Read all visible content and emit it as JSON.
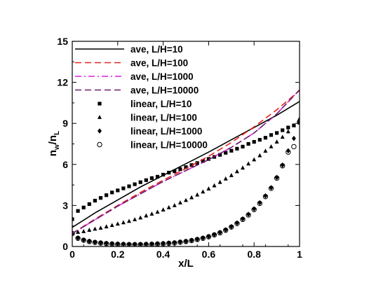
{
  "chart_data": {
    "type": "line",
    "xlabel": "x/L",
    "ylabel_main": "n",
    "ylabel_sub1": "w",
    "ylabel_mid": "/n",
    "ylabel_sub2": "L",
    "xlim": [
      0,
      1
    ],
    "ylim": [
      0,
      15
    ],
    "xticks": [
      0,
      0.2,
      0.4,
      0.6,
      0.8,
      1
    ],
    "xtick_labels": [
      "0",
      "0.2",
      "0.4",
      "0.6",
      "0.8",
      "1"
    ],
    "yticks": [
      0,
      3,
      6,
      9,
      12,
      15
    ],
    "ytick_labels": [
      "0",
      "3",
      "6",
      "9",
      "12",
      "15"
    ],
    "grid": false,
    "legend_position": "top-left",
    "lines": [
      {
        "name": "ave, L/H=10",
        "color": "#000000",
        "dash": "solid",
        "x": [
          0,
          0.1,
          0.2,
          0.3,
          0.4,
          0.5,
          0.6,
          0.7,
          0.8,
          0.9,
          1.0
        ],
        "y": [
          1.4,
          2.45,
          3.4,
          4.35,
          5.2,
          6.05,
          6.9,
          7.8,
          8.7,
          9.6,
          10.6
        ]
      },
      {
        "name": "ave, L/H=100",
        "color": "#e8221c",
        "dash": "longdash",
        "x": [
          0,
          0.1,
          0.2,
          0.3,
          0.4,
          0.5,
          0.6,
          0.7,
          0.8,
          0.9,
          1.0
        ],
        "y": [
          0.95,
          2.0,
          3.0,
          3.95,
          4.85,
          5.7,
          6.6,
          7.6,
          8.75,
          10.0,
          11.4
        ]
      },
      {
        "name": "ave, L/H=1000",
        "color": "#e020e0",
        "dash": "dashdot",
        "x": [
          0,
          0.1,
          0.2,
          0.3,
          0.4,
          0.5,
          0.6,
          0.7,
          0.8,
          0.9,
          1.0
        ],
        "y": [
          0.95,
          1.95,
          2.95,
          3.85,
          4.75,
          5.55,
          6.35,
          7.25,
          8.3,
          9.7,
          11.45
        ]
      },
      {
        "name": "ave, L/H=10000",
        "color": "#6a1f6e",
        "dash": "longdash",
        "x": [
          0,
          0.1,
          0.2,
          0.3,
          0.4,
          0.5,
          0.6,
          0.7,
          0.8,
          0.9,
          1.0
        ],
        "y": [
          0.95,
          1.95,
          2.95,
          3.85,
          4.75,
          5.55,
          6.35,
          7.25,
          8.3,
          9.7,
          11.45
        ]
      }
    ],
    "markers": [
      {
        "name": "linear, L/H=10",
        "marker": "square",
        "x": [
          0,
          0.025,
          0.05,
          0.075,
          0.1,
          0.125,
          0.15,
          0.175,
          0.2,
          0.225,
          0.25,
          0.275,
          0.3,
          0.325,
          0.35,
          0.375,
          0.4,
          0.425,
          0.45,
          0.475,
          0.5,
          0.525,
          0.55,
          0.575,
          0.6,
          0.625,
          0.65,
          0.675,
          0.7,
          0.725,
          0.75,
          0.775,
          0.8,
          0.825,
          0.85,
          0.875,
          0.9,
          0.925,
          0.95,
          0.975,
          1.0
        ],
        "y": [
          2.0,
          2.6,
          2.85,
          3.1,
          3.35,
          3.55,
          3.75,
          3.95,
          4.1,
          4.25,
          4.4,
          4.55,
          4.7,
          4.85,
          5.0,
          5.1,
          5.25,
          5.4,
          5.5,
          5.65,
          5.8,
          5.95,
          6.1,
          6.25,
          6.4,
          6.55,
          6.7,
          6.85,
          7.0,
          7.15,
          7.3,
          7.5,
          7.65,
          7.8,
          7.95,
          8.15,
          8.3,
          8.5,
          8.7,
          8.85,
          9.05
        ]
      },
      {
        "name": "linear, L/H=100",
        "marker": "triangle",
        "x": [
          0,
          0.025,
          0.05,
          0.075,
          0.1,
          0.125,
          0.15,
          0.175,
          0.2,
          0.225,
          0.25,
          0.275,
          0.3,
          0.325,
          0.35,
          0.375,
          0.4,
          0.425,
          0.45,
          0.475,
          0.5,
          0.525,
          0.55,
          0.575,
          0.6,
          0.625,
          0.65,
          0.675,
          0.7,
          0.725,
          0.75,
          0.775,
          0.8,
          0.825,
          0.85,
          0.875,
          0.9,
          0.925,
          0.95,
          0.975,
          1.0
        ],
        "y": [
          1.0,
          1.05,
          1.1,
          1.2,
          1.28,
          1.35,
          1.45,
          1.55,
          1.65,
          1.75,
          1.85,
          1.97,
          2.1,
          2.25,
          2.38,
          2.52,
          2.68,
          2.85,
          3.0,
          3.2,
          3.38,
          3.58,
          3.78,
          4.0,
          4.22,
          4.45,
          4.7,
          4.95,
          5.2,
          5.48,
          5.75,
          6.05,
          6.35,
          6.65,
          6.98,
          7.3,
          7.65,
          8.0,
          8.4,
          8.85,
          9.35
        ]
      },
      {
        "name": "linear, L/H=1000",
        "marker": "diamond",
        "x": [
          0,
          0.025,
          0.05,
          0.075,
          0.1,
          0.125,
          0.15,
          0.175,
          0.2,
          0.225,
          0.25,
          0.275,
          0.3,
          0.325,
          0.35,
          0.375,
          0.4,
          0.425,
          0.45,
          0.475,
          0.5,
          0.525,
          0.55,
          0.575,
          0.6,
          0.625,
          0.65,
          0.675,
          0.7,
          0.725,
          0.75,
          0.775,
          0.8,
          0.825,
          0.85,
          0.875,
          0.9,
          0.925,
          0.95,
          0.975,
          1.0
        ],
        "y": [
          0.95,
          0.62,
          0.48,
          0.38,
          0.32,
          0.27,
          0.23,
          0.2,
          0.18,
          0.17,
          0.16,
          0.16,
          0.16,
          0.17,
          0.18,
          0.2,
          0.22,
          0.25,
          0.28,
          0.33,
          0.38,
          0.45,
          0.53,
          0.62,
          0.73,
          0.87,
          1.03,
          1.22,
          1.45,
          1.72,
          2.02,
          2.35,
          2.75,
          3.2,
          3.7,
          4.3,
          5.05,
          5.95,
          7.0,
          7.9,
          9.2
        ]
      },
      {
        "name": "linear, L/H=10000",
        "marker": "circle",
        "x": [
          0,
          0.025,
          0.05,
          0.075,
          0.1,
          0.125,
          0.15,
          0.175,
          0.2,
          0.225,
          0.25,
          0.275,
          0.3,
          0.325,
          0.35,
          0.375,
          0.4,
          0.425,
          0.45,
          0.475,
          0.5,
          0.525,
          0.55,
          0.575,
          0.6,
          0.625,
          0.65,
          0.675,
          0.7,
          0.725,
          0.75,
          0.775,
          0.8,
          0.825,
          0.85,
          0.875,
          0.9,
          0.925,
          0.95,
          0.975,
          1.0
        ],
        "y": [
          0.95,
          0.6,
          0.46,
          0.36,
          0.3,
          0.25,
          0.21,
          0.18,
          0.16,
          0.15,
          0.14,
          0.14,
          0.14,
          0.15,
          0.16,
          0.18,
          0.2,
          0.23,
          0.26,
          0.31,
          0.36,
          0.43,
          0.51,
          0.6,
          0.71,
          0.85,
          1.0,
          1.19,
          1.42,
          1.68,
          1.98,
          2.3,
          2.7,
          3.15,
          3.65,
          4.25,
          5.0,
          5.9,
          6.9,
          7.3,
          9.1
        ]
      }
    ]
  }
}
